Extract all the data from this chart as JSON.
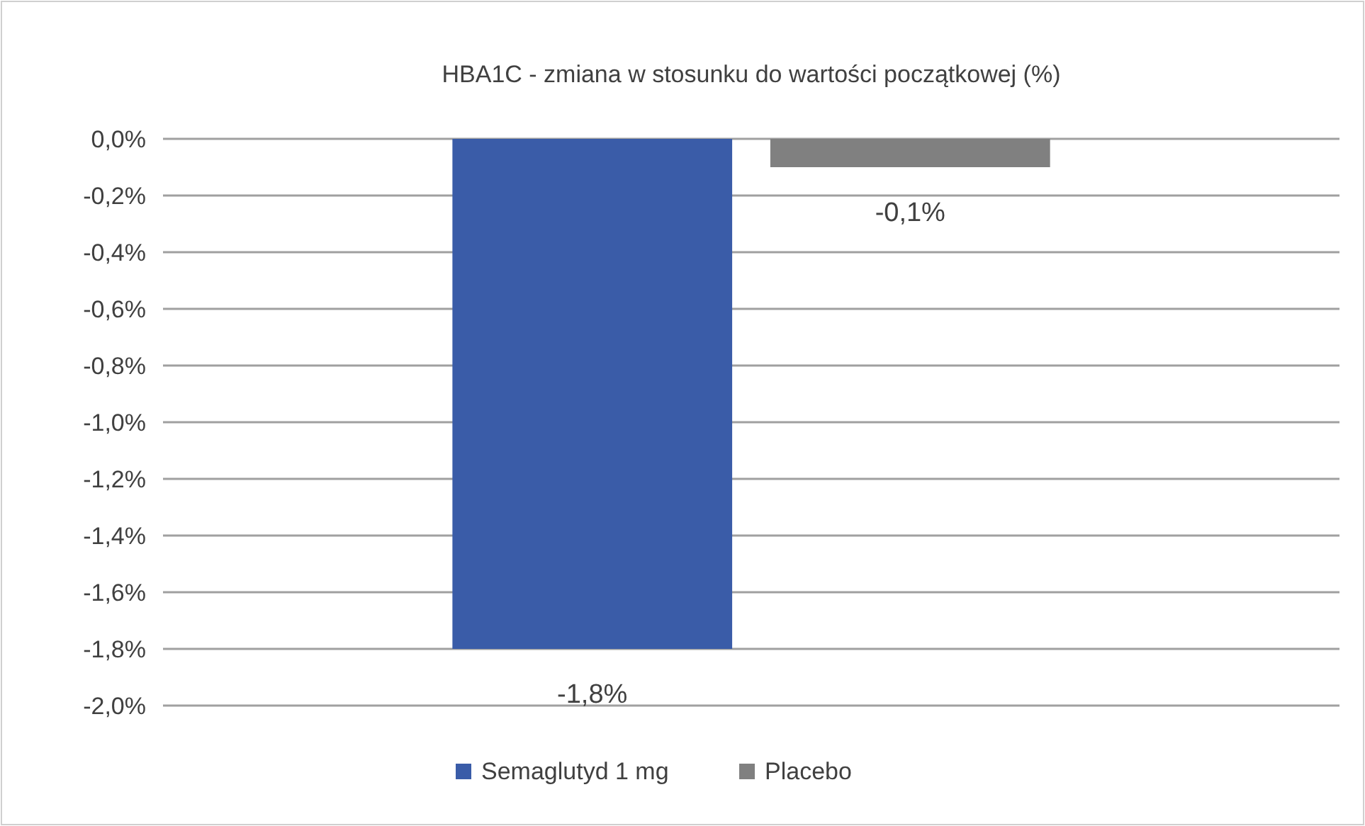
{
  "chart_data": {
    "type": "bar",
    "title": "HBA1C - zmiana w stosunku do wartości początkowej (%)",
    "categories": [
      null
    ],
    "series": [
      {
        "name": "Semaglutyd 1 mg",
        "color": "#3a5ca8",
        "values": [
          -1.8
        ],
        "value_labels": [
          "-1,8%"
        ]
      },
      {
        "name": "Placebo",
        "color": "#808080",
        "values": [
          -0.1
        ],
        "value_labels": [
          "-0,1%"
        ]
      }
    ],
    "ylim": [
      -2,
      0
    ],
    "yticks": [
      {
        "value": 0,
        "label": "0,0%"
      },
      {
        "value": -0.2,
        "label": "-0,2%"
      },
      {
        "value": -0.4,
        "label": "-0,4%"
      },
      {
        "value": -0.6,
        "label": "-0,6%"
      },
      {
        "value": -0.8,
        "label": "-0,8%"
      },
      {
        "value": -1,
        "label": "-1,0%"
      },
      {
        "value": -1.2,
        "label": "-1,2%"
      },
      {
        "value": -1.4,
        "label": "-1,4%"
      },
      {
        "value": -1.6,
        "label": "-1,6%"
      },
      {
        "value": -1.8,
        "label": "-1,8%"
      },
      {
        "value": -2,
        "label": "-2,0%"
      }
    ],
    "grid": "y",
    "legend": "bottom"
  }
}
